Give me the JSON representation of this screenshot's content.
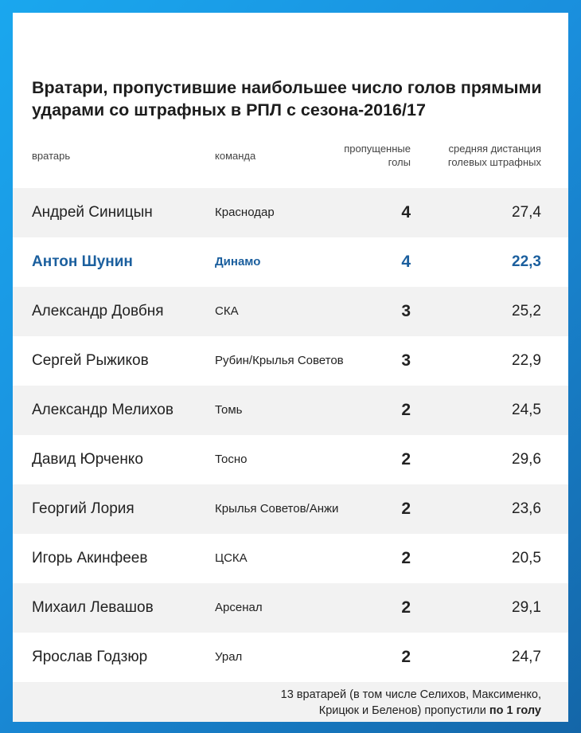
{
  "title": "Вратари, пропустившие наибольшее число голов прямыми ударами со штрафных в РПЛ с сезона-2016/17",
  "header": {
    "goalkeeper": "вратарь",
    "team": "команда",
    "goals": "пропущенные голы",
    "distance": "средняя дистанция голевых штрафных"
  },
  "chart_data": {
    "type": "table",
    "title": "Вратари, пропустившие наибольшее число голов прямыми ударами со штрафных в РПЛ с сезона-2016/17",
    "columns": [
      "вратарь",
      "команда",
      "пропущенные голы",
      "средняя дистанция голевых штрафных"
    ],
    "highlight_color": "#1b5f9e",
    "rows": [
      {
        "name": "Андрей Синицын",
        "team": "Краснодар",
        "goals": "4",
        "distance": "27,4",
        "highlight": false
      },
      {
        "name": "Антон Шунин",
        "team": "Динамо",
        "goals": "4",
        "distance": "22,3",
        "highlight": true
      },
      {
        "name": "Александр Довбня",
        "team": "СКА",
        "goals": "3",
        "distance": "25,2",
        "highlight": false
      },
      {
        "name": "Сергей Рыжиков",
        "team": "Рубин/Крылья Советов",
        "goals": "3",
        "distance": "22,9",
        "highlight": false
      },
      {
        "name": "Александр Мелихов",
        "team": "Томь",
        "goals": "2",
        "distance": "24,5",
        "highlight": false
      },
      {
        "name": "Давид Юрченко",
        "team": "Тосно",
        "goals": "2",
        "distance": "29,6",
        "highlight": false
      },
      {
        "name": "Георгий Лория",
        "team": "Крылья Советов/Анжи",
        "goals": "2",
        "distance": "23,6",
        "highlight": false
      },
      {
        "name": "Игорь Акинфеев",
        "team": "ЦСКА",
        "goals": "2",
        "distance": "20,5",
        "highlight": false
      },
      {
        "name": "Михаил Левашов",
        "team": "Арсенал",
        "goals": "2",
        "distance": "29,1",
        "highlight": false
      },
      {
        "name": "Ярослав Годзюр",
        "team": "Урал",
        "goals": "2",
        "distance": "24,7",
        "highlight": false
      }
    ]
  },
  "footnote": {
    "line1": "13 вратарей (в том числе Селихов, Максименко,",
    "line2_plain": "Крицюк и Беленов) пропустили ",
    "line2_bold": "по 1 голу"
  }
}
